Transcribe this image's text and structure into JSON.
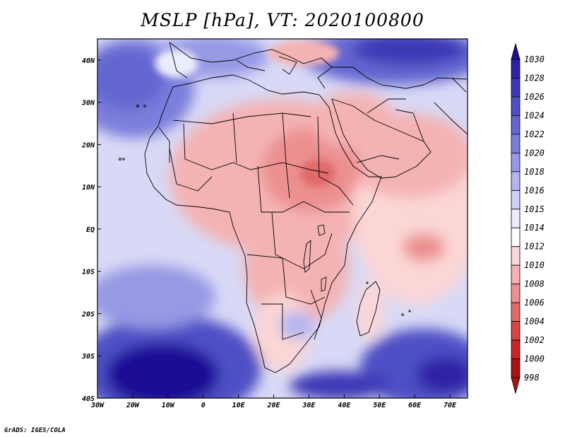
{
  "title": "MSLP [hPa], VT: 2020100800",
  "credit": "GrADS: IGES/COLA",
  "map": {
    "variable": "MSLP",
    "units": "hPa",
    "valid_time": "2020100800",
    "lon_range": [
      -30,
      75
    ],
    "lat_range": [
      -40,
      45
    ],
    "x_ticks": [
      {
        "value": -30,
        "label": "30W"
      },
      {
        "value": -20,
        "label": "20W"
      },
      {
        "value": -10,
        "label": "10W"
      },
      {
        "value": 0,
        "label": "0"
      },
      {
        "value": 10,
        "label": "10E"
      },
      {
        "value": 20,
        "label": "20E"
      },
      {
        "value": 30,
        "label": "30E"
      },
      {
        "value": 40,
        "label": "40E"
      },
      {
        "value": 50,
        "label": "50E"
      },
      {
        "value": 60,
        "label": "60E"
      },
      {
        "value": 70,
        "label": "70E"
      }
    ],
    "y_ticks": [
      {
        "value": 40,
        "label": "40N"
      },
      {
        "value": 30,
        "label": "30N"
      },
      {
        "value": 20,
        "label": "20N"
      },
      {
        "value": 10,
        "label": "10N"
      },
      {
        "value": 0,
        "label": "EQ"
      },
      {
        "value": -10,
        "label": "10S"
      },
      {
        "value": -20,
        "label": "20S"
      },
      {
        "value": -30,
        "label": "30S"
      },
      {
        "value": -40,
        "label": "40S"
      }
    ]
  },
  "colorbar": {
    "levels": [
      "1030",
      "1028",
      "1026",
      "1024",
      "1022",
      "1020",
      "1018",
      "1016",
      "1015",
      "1014",
      "1012",
      "1010",
      "1008",
      "1006",
      "1004",
      "1002",
      "1000",
      "998"
    ],
    "colors": [
      "#1e0f96",
      "#2d22a6",
      "#3c37b6",
      "#4d4fc4",
      "#6466d0",
      "#7c7edb",
      "#9799e5",
      "#b3b5ef",
      "#cfd0f6",
      "#ecedfc",
      "#ffffff",
      "#fbd6d6",
      "#f4b3b3",
      "#ec8f8f",
      "#e26a6a",
      "#d64545",
      "#c82727",
      "#a81414"
    ]
  },
  "features": {
    "low_pressure_regions": [
      "Sahara / Sahel thermal low",
      "Arabian Peninsula",
      "Horn of Africa",
      "Arabian Sea / Indian Ocean",
      "Central & Southern Africa interior"
    ],
    "high_pressure_regions": [
      "Azores high (North Atlantic)",
      "Europe / Central Asia",
      "South Atlantic high",
      "South Indian Ocean high"
    ]
  }
}
